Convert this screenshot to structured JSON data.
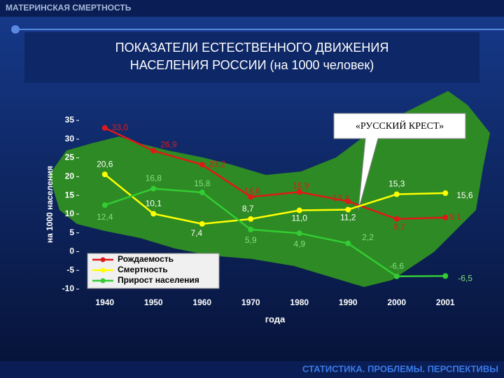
{
  "header": "МАТЕРИНСКАЯ СМЕРТНОСТЬ",
  "footer": "СТАТИСТИКА. ПРОБЛЕМЫ. ПЕРСПЕКТИВЫ",
  "chart_data": {
    "type": "line",
    "title": "ПОКАЗАТЕЛИ ЕСТЕСТВЕННОГО ДВИЖЕНИЯ НАСЕЛЕНИЯ РОССИИ (на 1000 человек)",
    "annotation": "«РУССКИЙ КРЕСТ»",
    "y_label": "на 1000 населения",
    "x_label": "года",
    "categories": [
      "1940",
      "1950",
      "1960",
      "1970",
      "1980",
      "1990",
      "2000",
      "2001"
    ],
    "ylim": [
      -10,
      35
    ],
    "yticks": [
      -10,
      -5,
      0,
      5,
      10,
      15,
      20,
      25,
      30,
      35
    ],
    "series": [
      {
        "name": "Рождаемость",
        "color": "#e01818",
        "values": [
          33.0,
          26.9,
          23.2,
          14.6,
          15.9,
          13.4,
          8.7,
          9.1
        ],
        "value_labels": [
          "33,0",
          "26,9",
          "23,2",
          "14,6",
          "15,9",
          "13,4",
          "8,7",
          "9,1"
        ]
      },
      {
        "name": "Смертность",
        "color": "#ffff00",
        "values": [
          20.6,
          10.1,
          7.4,
          8.7,
          11.0,
          11.2,
          15.3,
          15.6
        ],
        "value_labels": [
          "20,6",
          "10,1",
          "7,4",
          "8,7",
          "11,0",
          "11,2",
          "15,3",
          "15,6"
        ]
      },
      {
        "name": "Прирост населения",
        "color": "#33cc33",
        "values": [
          12.4,
          16.8,
          15.8,
          5.9,
          4.9,
          2.2,
          -6.6,
          -6.5
        ],
        "value_labels": [
          "12,4",
          "16,8",
          "15,8",
          "5,9",
          "4,9",
          "2,2",
          "-6,6",
          "-6,5"
        ]
      }
    ]
  }
}
